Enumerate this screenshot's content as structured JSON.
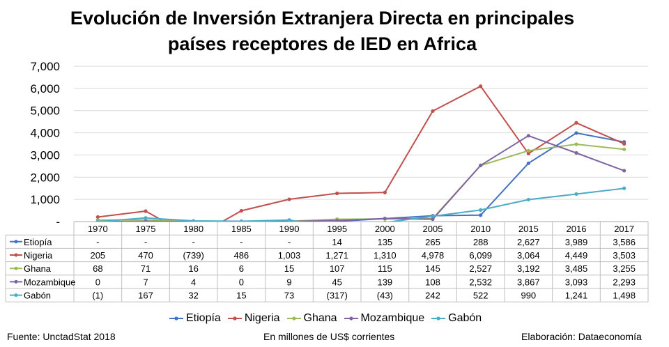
{
  "title_lines": [
    "Evolución de Inversión Extranjera Directa en principales",
    "países receptores de IED en Africa"
  ],
  "footer": {
    "source": "Fuente: UnctadStat 2018",
    "units": "En millones de US$ corrientes",
    "credit": "Elaboración: Dataeconomía"
  },
  "colors": {
    "Etiopía": "#4472C4",
    "Nigeria": "#C0504D",
    "Ghana": "#9BBB59",
    "Mozambique": "#8064A2",
    "Gabón": "#4BACC6"
  },
  "chart_data": {
    "type": "line",
    "title": "Evolución de Inversión Extranjera Directa en principales países receptores de IED en Africa",
    "ylabel": "",
    "xlabel": "",
    "ylim": [
      0,
      7000
    ],
    "y_ticks": [
      0,
      1000,
      2000,
      3000,
      4000,
      5000,
      6000,
      7000
    ],
    "y_tick_labels": [
      "-",
      "1,000",
      "2,000",
      "3,000",
      "4,000",
      "5,000",
      "6,000",
      "7,000"
    ],
    "categories": [
      "1970",
      "1975",
      "1980",
      "1985",
      "1990",
      "1995",
      "2000",
      "2005",
      "2010",
      "2015",
      "2016",
      "2017"
    ],
    "grid": "horizontal",
    "legend_position": "bottom",
    "data_table": true,
    "series": [
      {
        "name": "Etiopía",
        "values": [
          null,
          null,
          null,
          null,
          null,
          14,
          135,
          265,
          288,
          2627,
          3989,
          3586
        ],
        "labels": [
          "-",
          "-",
          "-",
          "-",
          "-",
          "14",
          "135",
          "265",
          "288",
          "2,627",
          "3,989",
          "3,586"
        ]
      },
      {
        "name": "Nigeria",
        "values": [
          205,
          470,
          -739,
          486,
          1003,
          1271,
          1310,
          4978,
          6099,
          3064,
          4449,
          3503
        ],
        "labels": [
          "205",
          "470",
          "(739)",
          "486",
          "1,003",
          "1,271",
          "1,310",
          "4,978",
          "6,099",
          "3,064",
          "4,449",
          "3,503"
        ]
      },
      {
        "name": "Ghana",
        "values": [
          68,
          71,
          16,
          6,
          15,
          107,
          115,
          145,
          2527,
          3192,
          3485,
          3255
        ],
        "labels": [
          "68",
          "71",
          "16",
          "6",
          "15",
          "107",
          "115",
          "145",
          "2,527",
          "3,192",
          "3,485",
          "3,255"
        ]
      },
      {
        "name": "Mozambique",
        "values": [
          0,
          7,
          4,
          0,
          9,
          45,
          139,
          108,
          2532,
          3867,
          3093,
          2293
        ],
        "labels": [
          "0",
          "7",
          "4",
          "0",
          "9",
          "45",
          "139",
          "108",
          "2,532",
          "3,867",
          "3,093",
          "2,293"
        ]
      },
      {
        "name": "Gabón",
        "values": [
          -1,
          167,
          32,
          15,
          73,
          -317,
          -43,
          242,
          522,
          990,
          1241,
          1498
        ],
        "labels": [
          "(1)",
          "167",
          "32",
          "15",
          "73",
          "(317)",
          "(43)",
          "242",
          "522",
          "990",
          "1,241",
          "1,498"
        ]
      }
    ]
  }
}
